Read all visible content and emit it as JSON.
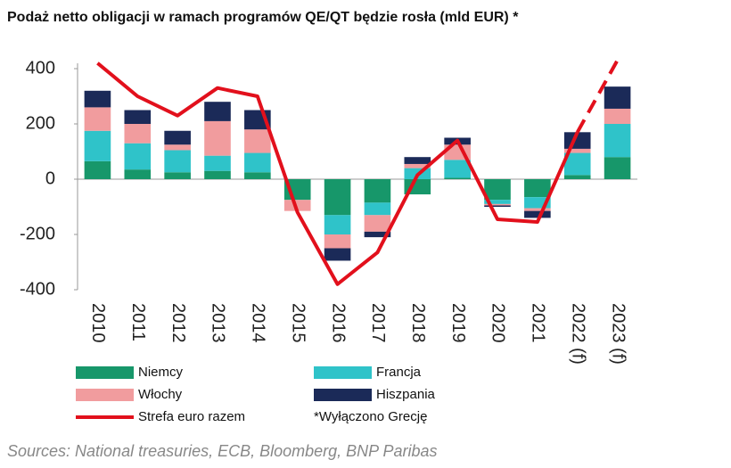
{
  "chart_data": {
    "type": "bar",
    "title": "Podaż netto obligacji w ramach programów QE/QT będzie rosła (mld EUR) *",
    "categories": [
      "2010",
      "2011",
      "2012",
      "2013",
      "2014",
      "2015",
      "2016",
      "2017",
      "2018",
      "2019",
      "2020",
      "2021",
      "2022 (f)",
      "2023 (f)"
    ],
    "stacked": true,
    "series": [
      {
        "name": "Niemcy",
        "color": "#17976a",
        "values": [
          65,
          35,
          25,
          30,
          25,
          -75,
          -130,
          -85,
          -55,
          5,
          -75,
          -65,
          15,
          80
        ]
      },
      {
        "name": "Francja",
        "color": "#2fc3c9",
        "values": [
          110,
          95,
          80,
          55,
          70,
          0,
          -70,
          -45,
          40,
          65,
          -15,
          -40,
          80,
          120
        ]
      },
      {
        "name": "Włochy",
        "color": "#f19c9e",
        "values": [
          85,
          70,
          20,
          125,
          85,
          -40,
          -50,
          -60,
          15,
          55,
          -5,
          -10,
          15,
          55
        ]
      },
      {
        "name": "Hiszpania",
        "color": "#1b2a58",
        "values": [
          60,
          50,
          50,
          70,
          70,
          0,
          -45,
          -20,
          25,
          25,
          -5,
          -25,
          60,
          80
        ]
      },
      {
        "name": "Strefa euro razem",
        "type": "line",
        "color": "#e2101c",
        "dashed_from": 12,
        "values": [
          420,
          300,
          230,
          330,
          300,
          -120,
          -380,
          -265,
          15,
          140,
          -145,
          -155,
          170,
          430
        ]
      }
    ],
    "note": "*Wyłączono Grecję",
    "source": "Sources: National treasuries, ECB, Bloomberg, BNP  Paribas",
    "ylim": [
      -400,
      450
    ],
    "yticks": [
      -400,
      -200,
      0,
      200,
      400
    ],
    "legend": "bottom"
  }
}
